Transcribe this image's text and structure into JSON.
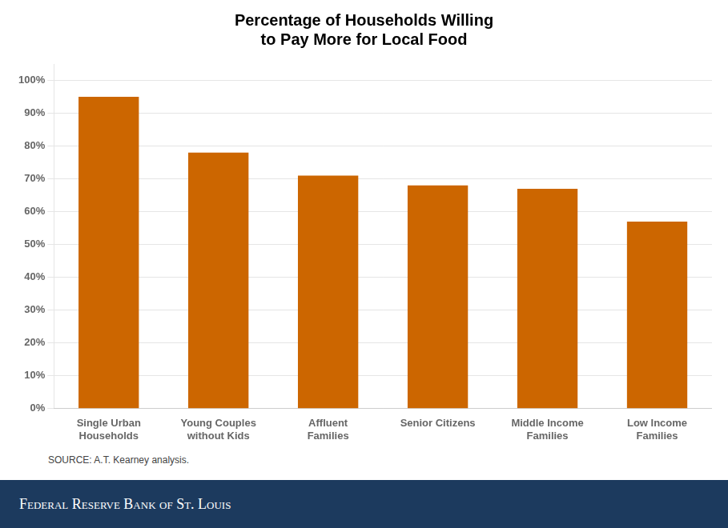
{
  "chart_data": {
    "type": "bar",
    "title": "Percentage of Households Willing\nto Pay More for Local Food",
    "categories": [
      "Single Urban\nHouseholds",
      "Young Couples\nwithout Kids",
      "Affluent\nFamilies",
      "Senior Citizens",
      "Middle Income\nFamilies",
      "Low Income\nFamilies"
    ],
    "values": [
      0.95,
      0.78,
      0.71,
      0.68,
      0.67,
      0.57
    ],
    "color": "#CC6600",
    "ylim": [
      0,
      1.05
    ],
    "yticks": [
      {
        "value": 0.0,
        "label": "0%"
      },
      {
        "value": 0.1,
        "label": "10%"
      },
      {
        "value": 0.2,
        "label": "20%"
      },
      {
        "value": 0.3,
        "label": "30%"
      },
      {
        "value": 0.4,
        "label": "40%"
      },
      {
        "value": 0.5,
        "label": "50%"
      },
      {
        "value": 0.6,
        "label": "60%"
      },
      {
        "value": 0.7,
        "label": "70%"
      },
      {
        "value": 0.8,
        "label": "80%"
      },
      {
        "value": 0.9,
        "label": "90%"
      },
      {
        "value": 1.0,
        "label": "100%"
      }
    ],
    "grid": true,
    "annotations": [
      "SOURCE: A.T. Kearney analysis.",
      "Federal Reserve Bank of St. Louis"
    ]
  }
}
